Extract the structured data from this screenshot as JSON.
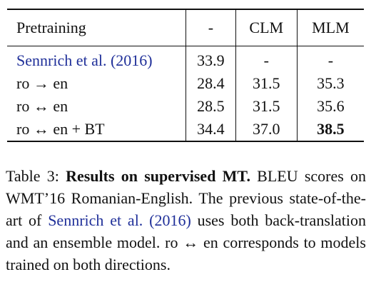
{
  "table": {
    "header": [
      "Pretraining",
      "-",
      "CLM",
      "MLM"
    ],
    "rows": [
      [
        "Sennrich et al. (2016)",
        "33.9",
        "-",
        "-"
      ],
      [
        "ro → en",
        "28.4",
        "31.5",
        "35.3"
      ],
      [
        "ro ↔ en",
        "28.5",
        "31.5",
        "35.6"
      ],
      [
        "ro ↔ en + BT",
        "34.4",
        "37.0",
        "38.5"
      ]
    ],
    "citation_cells": [
      [
        0,
        0
      ]
    ],
    "bold_cells": [
      [
        3,
        3
      ]
    ]
  },
  "caption": {
    "label": "Table 3:",
    "title": "Results on supervised MT.",
    "text_before": "BLEU scores on WMT’16 Romanian-English. The previous state-of-the-art of",
    "citation": "Sennrich et al. (2016)",
    "text_after": "uses both back-translation and an ensemble model. ro ↔ en corresponds to models trained on both directions."
  }
}
